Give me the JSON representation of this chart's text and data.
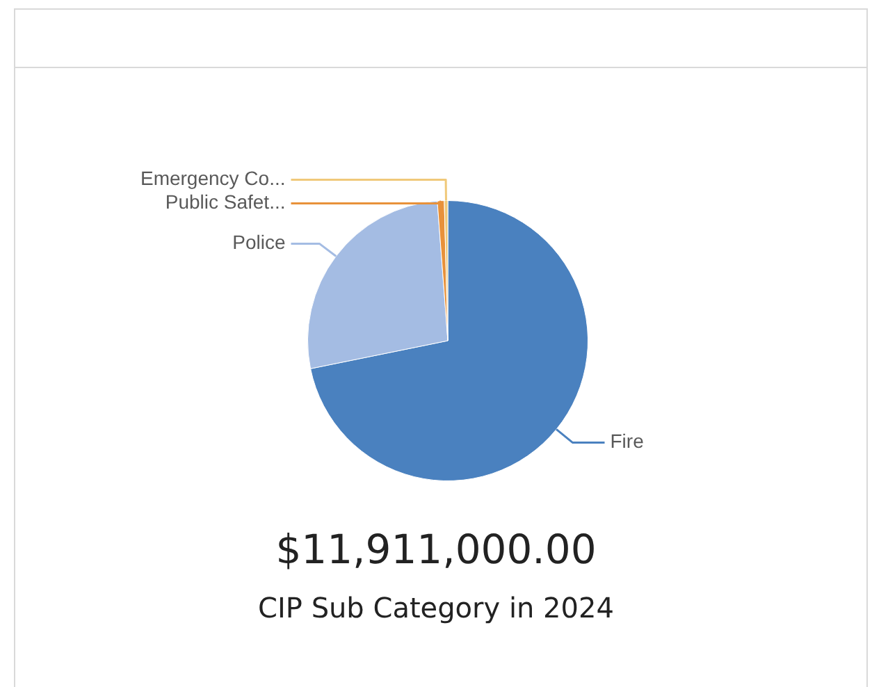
{
  "chart_data": {
    "type": "pie",
    "title": "$11,911,000.00",
    "subtitle": "CIP Sub Category in 2024",
    "categories": [
      "Fire",
      "Police",
      "Public Safet...",
      "Emergency Co..."
    ],
    "values": [
      71.8,
      27.0,
      0.8,
      0.4
    ],
    "colors": [
      "#4a81bf",
      "#a4bce3",
      "#e8913a",
      "#f0c97a"
    ]
  }
}
